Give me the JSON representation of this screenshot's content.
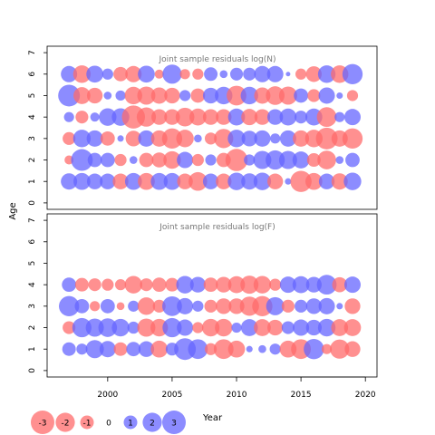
{
  "chart_data": {
    "type": "scatter",
    "ylabel": "Age",
    "xlabel": "Year",
    "x_ticks": [
      "2000",
      "2005",
      "2010",
      "2015",
      "2020"
    ],
    "xlim": [
      1995.3,
      2020.9
    ],
    "y_ticks": [
      "0",
      "1",
      "2",
      "3",
      "4",
      "5",
      "6",
      "7"
    ],
    "colors": {
      "positive": "#6666ff",
      "negative": "#ff6b6b"
    },
    "years": [
      1997,
      1998,
      1999,
      2000,
      2001,
      2002,
      2003,
      2004,
      2005,
      2006,
      2007,
      2008,
      2009,
      2010,
      2011,
      2012,
      2013,
      2014,
      2015,
      2016,
      2017,
      2018,
      2019
    ],
    "panels": [
      {
        "title": "Joint sample residuals log(N)",
        "ylim": [
          -0.3,
          7.3
        ],
        "ages": [
          1,
          2,
          3,
          4,
          5,
          6
        ],
        "residuals": [
          [
            1.3,
            1.4,
            1.2,
            1.2,
            -1.2,
            1.4,
            -1.4,
            1.4,
            1.4,
            -1.2,
            -1.7,
            1.2,
            -1.2,
            1.5,
            1.3,
            1.5,
            -1.2,
            0.2,
            -2.2,
            -1.4,
            1.2,
            -1.3,
            1.5
          ],
          [
            -0.4,
            2.3,
            1.0,
            1.0,
            -0.7,
            0.3,
            -1.0,
            -1.1,
            -1.5,
            1.3,
            -0.7,
            0.6,
            -1.0,
            -2.4,
            0.6,
            1.6,
            1.8,
            1.6,
            1.4,
            -0.9,
            -1.7,
            0.3,
            1.0
          ],
          [
            -0.8,
            1.5,
            1.3,
            -1.0,
            0.2,
            -1.2,
            1.3,
            -1.3,
            -2.0,
            -1.5,
            0.3,
            -0.7,
            -1.8,
            1.5,
            1.2,
            1.3,
            0.5,
            1.3,
            -1.3,
            -1.5,
            -2.3,
            -1.3,
            -2.0
          ],
          [
            0.5,
            -0.8,
            0.4,
            1.5,
            1.5,
            -2.6,
            -1.8,
            -1.2,
            -1.2,
            -1.7,
            -1.4,
            -1.2,
            -1.2,
            1.4,
            -1.3,
            -1.2,
            1.2,
            1.4,
            0.8,
            1.4,
            -1.9,
            0.5,
            1.3
          ],
          [
            2.3,
            -1.4,
            -1.2,
            0.3,
            0.5,
            -1.5,
            -1.6,
            -1.3,
            -1.2,
            0.6,
            -1.0,
            1.2,
            1.5,
            -1.9,
            1.5,
            -1.3,
            -1.7,
            -1.6,
            1.0,
            -0.8,
            1.3,
            0.2,
            -0.6
          ],
          [
            1.3,
            -1.5,
            1.4,
            0.6,
            -1.0,
            -1.3,
            1.4,
            -0.4,
            1.8,
            -0.5,
            -0.6,
            0.9,
            0.3,
            0.8,
            0.8,
            1.3,
            1.3,
            0.1,
            -0.6,
            -1.2,
            1.5,
            -1.5,
            2.0
          ]
        ]
      },
      {
        "title": "Joint sample residuals log(F)",
        "ylim": [
          -0.3,
          7.3
        ],
        "ages": [
          1,
          2,
          3,
          4
        ],
        "residuals": [
          [
            0.9,
            0.6,
            1.6,
            1.3,
            -0.9,
            1.0,
            1.2,
            -1.4,
            0.8,
            2.3,
            1.9,
            -0.7,
            -1.9,
            -1.4,
            0.2,
            0.3,
            0.6,
            -1.4,
            -1.9,
            2.0,
            -0.5,
            -1.8,
            -1.2
          ],
          [
            -0.8,
            1.8,
            1.6,
            1.7,
            1.5,
            0.7,
            -1.6,
            -1.5,
            1.8,
            1.3,
            -0.6,
            -1.5,
            -1.5,
            0.5,
            1.4,
            -1.4,
            -1.2,
            0.8,
            1.3,
            1.2,
            1.5,
            -1.4,
            -1.4
          ],
          [
            2.0,
            1.0,
            -0.5,
            1.0,
            -0.3,
            0.6,
            -1.5,
            -0.8,
            1.9,
            1.3,
            0.6,
            -0.8,
            -1.2,
            -1.2,
            -1.8,
            -2.0,
            1.6,
            -0.8,
            0.8,
            1.2,
            1.3,
            0.2,
            -1.2
          ],
          [
            1.0,
            -0.9,
            -0.8,
            -0.7,
            -0.6,
            -1.5,
            -0.8,
            -1.0,
            -0.9,
            1.5,
            1.2,
            -1.0,
            -1.2,
            -1.4,
            -1.6,
            -1.5,
            -0.7,
            1.3,
            1.4,
            1.2,
            1.9,
            -1.1,
            1.3
          ]
        ]
      }
    ],
    "legend": [
      {
        "label": "-3",
        "value": -3
      },
      {
        "label": "-2",
        "value": -2
      },
      {
        "label": "-1",
        "value": -1
      },
      {
        "label": "0",
        "value": 0
      },
      {
        "label": "1",
        "value": 1
      },
      {
        "label": "2",
        "value": 2
      },
      {
        "label": "3",
        "value": 3
      }
    ]
  }
}
